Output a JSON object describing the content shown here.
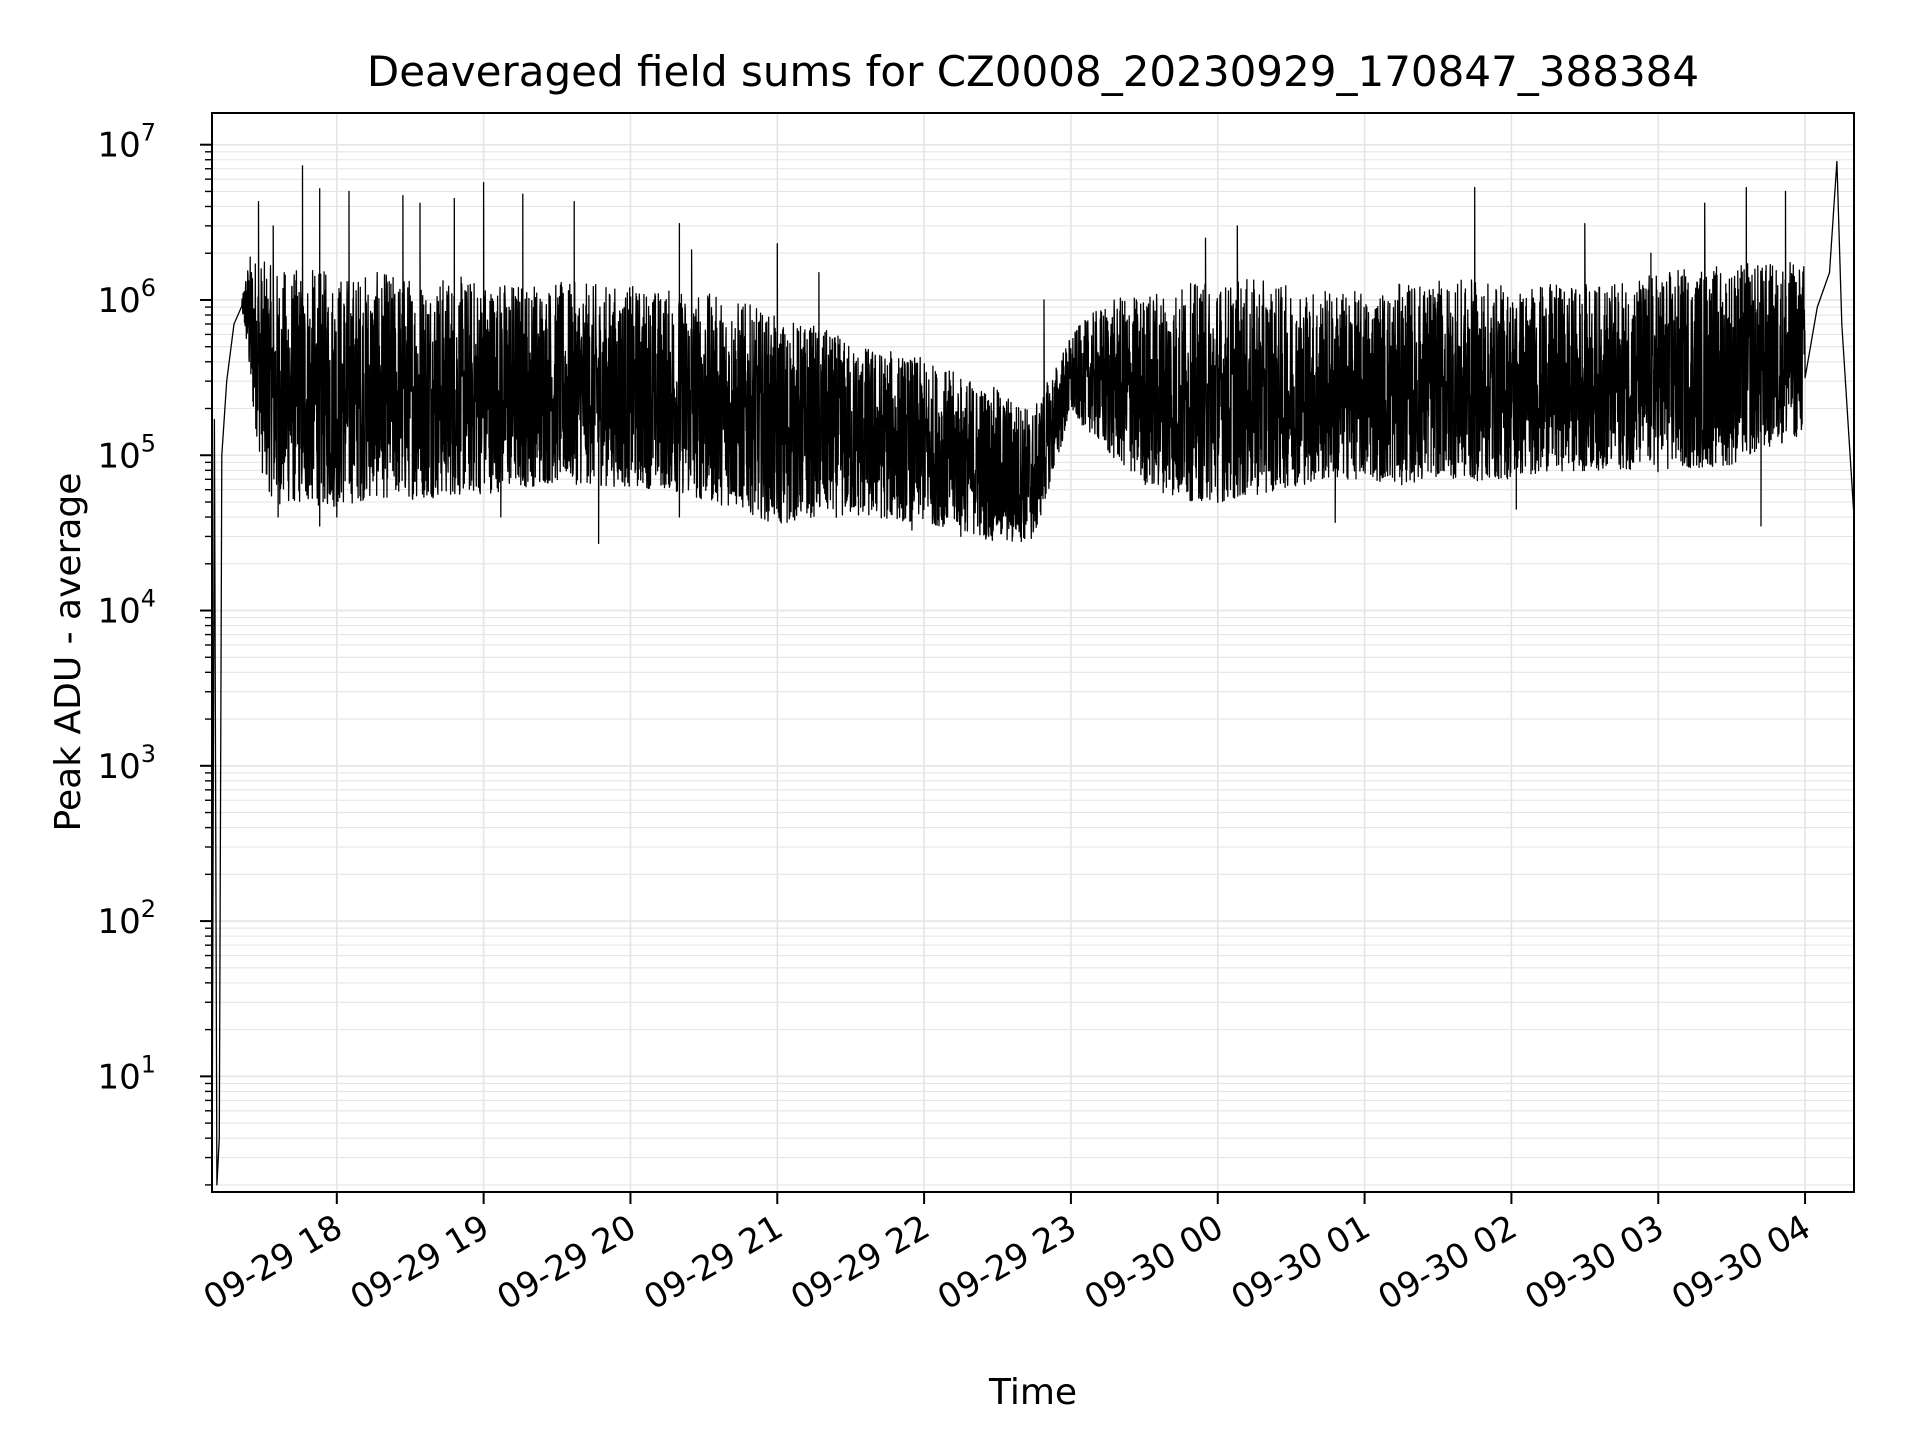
{
  "chart_data": {
    "type": "line",
    "title": "Deaveraged field sums for CZ0008_20230929_170847_388384",
    "xlabel": "Time",
    "ylabel": "Peak ADU - average",
    "yscale": "log",
    "ylim": [
      1.8,
      16000000
    ],
    "xlim": [
      "2023-09-29 17:09",
      "2023-09-30 04:20"
    ],
    "grid": true,
    "line_color": "#000000",
    "grid_color": "#e5e5e5",
    "x_tick_labels": [
      "09-29 18",
      "09-29 19",
      "09-29 20",
      "09-29 21",
      "09-29 22",
      "09-29 23",
      "09-30 00",
      "09-30 01",
      "09-30 02",
      "09-30 03",
      "09-30 04"
    ],
    "y_ticks": [
      {
        "base": "10",
        "exp": "1"
      },
      {
        "base": "10",
        "exp": "2"
      },
      {
        "base": "10",
        "exp": "3"
      },
      {
        "base": "10",
        "exp": "4"
      },
      {
        "base": "10",
        "exp": "5"
      },
      {
        "base": "10",
        "exp": "6"
      },
      {
        "base": "10",
        "exp": "7"
      }
    ],
    "series": [
      {
        "time": [
          "2023-09-29 17:09",
          "2023-09-29 17:10",
          "2023-09-29 17:11",
          "2023-09-29 17:12",
          "2023-09-29 17:13",
          "2023-09-29 17:15",
          "2023-09-29 17:18",
          "2023-09-29 17:21",
          "2023-09-29 17:25",
          "2023-09-29 17:30",
          "2023-09-29 17:35",
          "2023-09-29 17:40",
          "2023-09-29 17:50",
          "2023-09-29 18:00",
          "2023-09-29 18:15",
          "2023-09-29 18:30",
          "2023-09-29 18:45",
          "2023-09-29 19:00",
          "2023-09-29 19:15",
          "2023-09-29 19:30",
          "2023-09-29 19:45",
          "2023-09-29 20:00",
          "2023-09-29 20:15",
          "2023-09-29 20:30",
          "2023-09-29 20:45",
          "2023-09-29 21:00",
          "2023-09-29 21:15",
          "2023-09-29 21:30",
          "2023-09-29 21:45",
          "2023-09-29 22:00",
          "2023-09-29 22:15",
          "2023-09-29 22:30",
          "2023-09-29 22:45",
          "2023-09-29 23:00",
          "2023-09-29 23:15",
          "2023-09-29 23:30",
          "2023-09-29 23:45",
          "2023-09-30 00:00",
          "2023-09-30 00:15",
          "2023-09-30 00:30",
          "2023-09-30 00:45",
          "2023-09-30 01:00",
          "2023-09-30 01:15",
          "2023-09-30 01:30",
          "2023-09-30 01:45",
          "2023-09-30 02:00",
          "2023-09-30 02:15",
          "2023-09-30 02:30",
          "2023-09-30 02:45",
          "2023-09-30 03:00",
          "2023-09-30 03:15",
          "2023-09-30 03:30",
          "2023-09-30 03:45",
          "2023-09-30 04:00",
          "2023-09-30 04:05",
          "2023-09-30 04:10",
          "2023-09-30 04:15",
          "2023-09-30 04:20"
        ],
        "baseline": [
          1.5,
          170000,
          2,
          4,
          100000,
          300000,
          700000,
          900000,
          700000,
          450000,
          400000,
          400000,
          400000,
          380000,
          380000,
          370000,
          360000,
          350000,
          340000,
          330000,
          320000,
          310000,
          300000,
          280000,
          250000,
          220000,
          200000,
          180000,
          160000,
          140000,
          110000,
          90000,
          80000,
          300000,
          330000,
          320000,
          320000,
          330000,
          340000,
          350000,
          340000,
          320000,
          320000,
          330000,
          340000,
          350000,
          360000,
          360000,
          370000,
          390000,
          410000,
          430000,
          440000,
          450000,
          900000,
          1500000,
          700000,
          40000
        ],
        "spread_low": [
          1,
          1,
          1,
          1,
          1,
          1,
          1,
          1,
          0.3,
          0.15,
          0.12,
          0.12,
          0.12,
          0.12,
          0.14,
          0.14,
          0.15,
          0.16,
          0.18,
          0.2,
          0.2,
          0.2,
          0.2,
          0.18,
          0.18,
          0.16,
          0.2,
          0.22,
          0.24,
          0.26,
          0.3,
          0.3,
          0.35,
          0.6,
          0.3,
          0.2,
          0.16,
          0.15,
          0.16,
          0.18,
          0.2,
          0.22,
          0.2,
          0.22,
          0.2,
          0.2,
          0.22,
          0.22,
          0.22,
          0.2,
          0.2,
          0.2,
          0.25,
          0.3,
          1,
          1,
          1,
          1
        ],
        "spread_high": [
          1,
          1,
          1,
          1,
          1,
          1,
          1,
          1,
          3,
          4,
          4,
          4,
          4,
          4,
          4,
          4,
          4,
          4,
          4,
          4,
          4,
          4,
          4,
          4,
          4,
          3.5,
          3.5,
          3,
          3,
          3,
          3,
          3,
          2.5,
          2,
          3,
          3.5,
          4,
          4,
          4,
          3.5,
          3.5,
          3.5,
          4,
          4,
          4,
          3.5,
          3.5,
          3.5,
          3.5,
          4,
          4,
          4,
          4,
          4,
          1,
          1,
          1,
          1
        ],
        "spikes": [
          [
            "2023-09-29 17:28",
            4300000
          ],
          [
            "2023-09-29 17:34",
            3000000
          ],
          [
            "2023-09-29 17:46",
            7300000
          ],
          [
            "2023-09-29 17:53",
            5200000
          ],
          [
            "2023-09-29 18:05",
            5000000
          ],
          [
            "2023-09-29 18:27",
            4700000
          ],
          [
            "2023-09-29 18:34",
            4200000
          ],
          [
            "2023-09-29 18:48",
            4500000
          ],
          [
            "2023-09-29 19:00",
            5700000
          ],
          [
            "2023-09-29 19:16",
            4800000
          ],
          [
            "2023-09-29 19:37",
            4300000
          ],
          [
            "2023-09-29 20:20",
            3100000
          ],
          [
            "2023-09-29 20:25",
            2100000
          ],
          [
            "2023-09-29 21:00",
            2300000
          ],
          [
            "2023-09-29 21:17",
            1500000
          ],
          [
            "2023-09-29 22:49",
            1000000
          ],
          [
            "2023-09-29 23:55",
            2500000
          ],
          [
            "2023-09-30 00:08",
            3000000
          ],
          [
            "2023-09-30 01:45",
            5300000
          ],
          [
            "2023-09-30 02:30",
            3100000
          ],
          [
            "2023-09-30 02:57",
            2000000
          ],
          [
            "2023-09-30 03:19",
            4200000
          ],
          [
            "2023-09-30 03:36",
            5300000
          ],
          [
            "2023-09-30 03:52",
            5000000
          ],
          [
            "2023-09-30 04:13",
            7800000
          ]
        ],
        "dips": [
          [
            "2023-09-29 17:36",
            40000
          ],
          [
            "2023-09-29 17:53",
            35000
          ],
          [
            "2023-09-29 18:00",
            40000
          ],
          [
            "2023-09-29 19:07",
            40000
          ],
          [
            "2023-09-29 19:47",
            27000
          ],
          [
            "2023-09-29 20:20",
            40000
          ],
          [
            "2023-09-29 21:04",
            37000
          ],
          [
            "2023-09-29 21:55",
            33000
          ],
          [
            "2023-09-29 22:15",
            30000
          ],
          [
            "2023-09-29 22:36",
            28000
          ],
          [
            "2023-09-30 00:48",
            37000
          ],
          [
            "2023-09-30 02:02",
            45000
          ],
          [
            "2023-09-30 03:42",
            35000
          ],
          [
            "2023-09-30 04:20",
            40000
          ]
        ]
      }
    ]
  }
}
